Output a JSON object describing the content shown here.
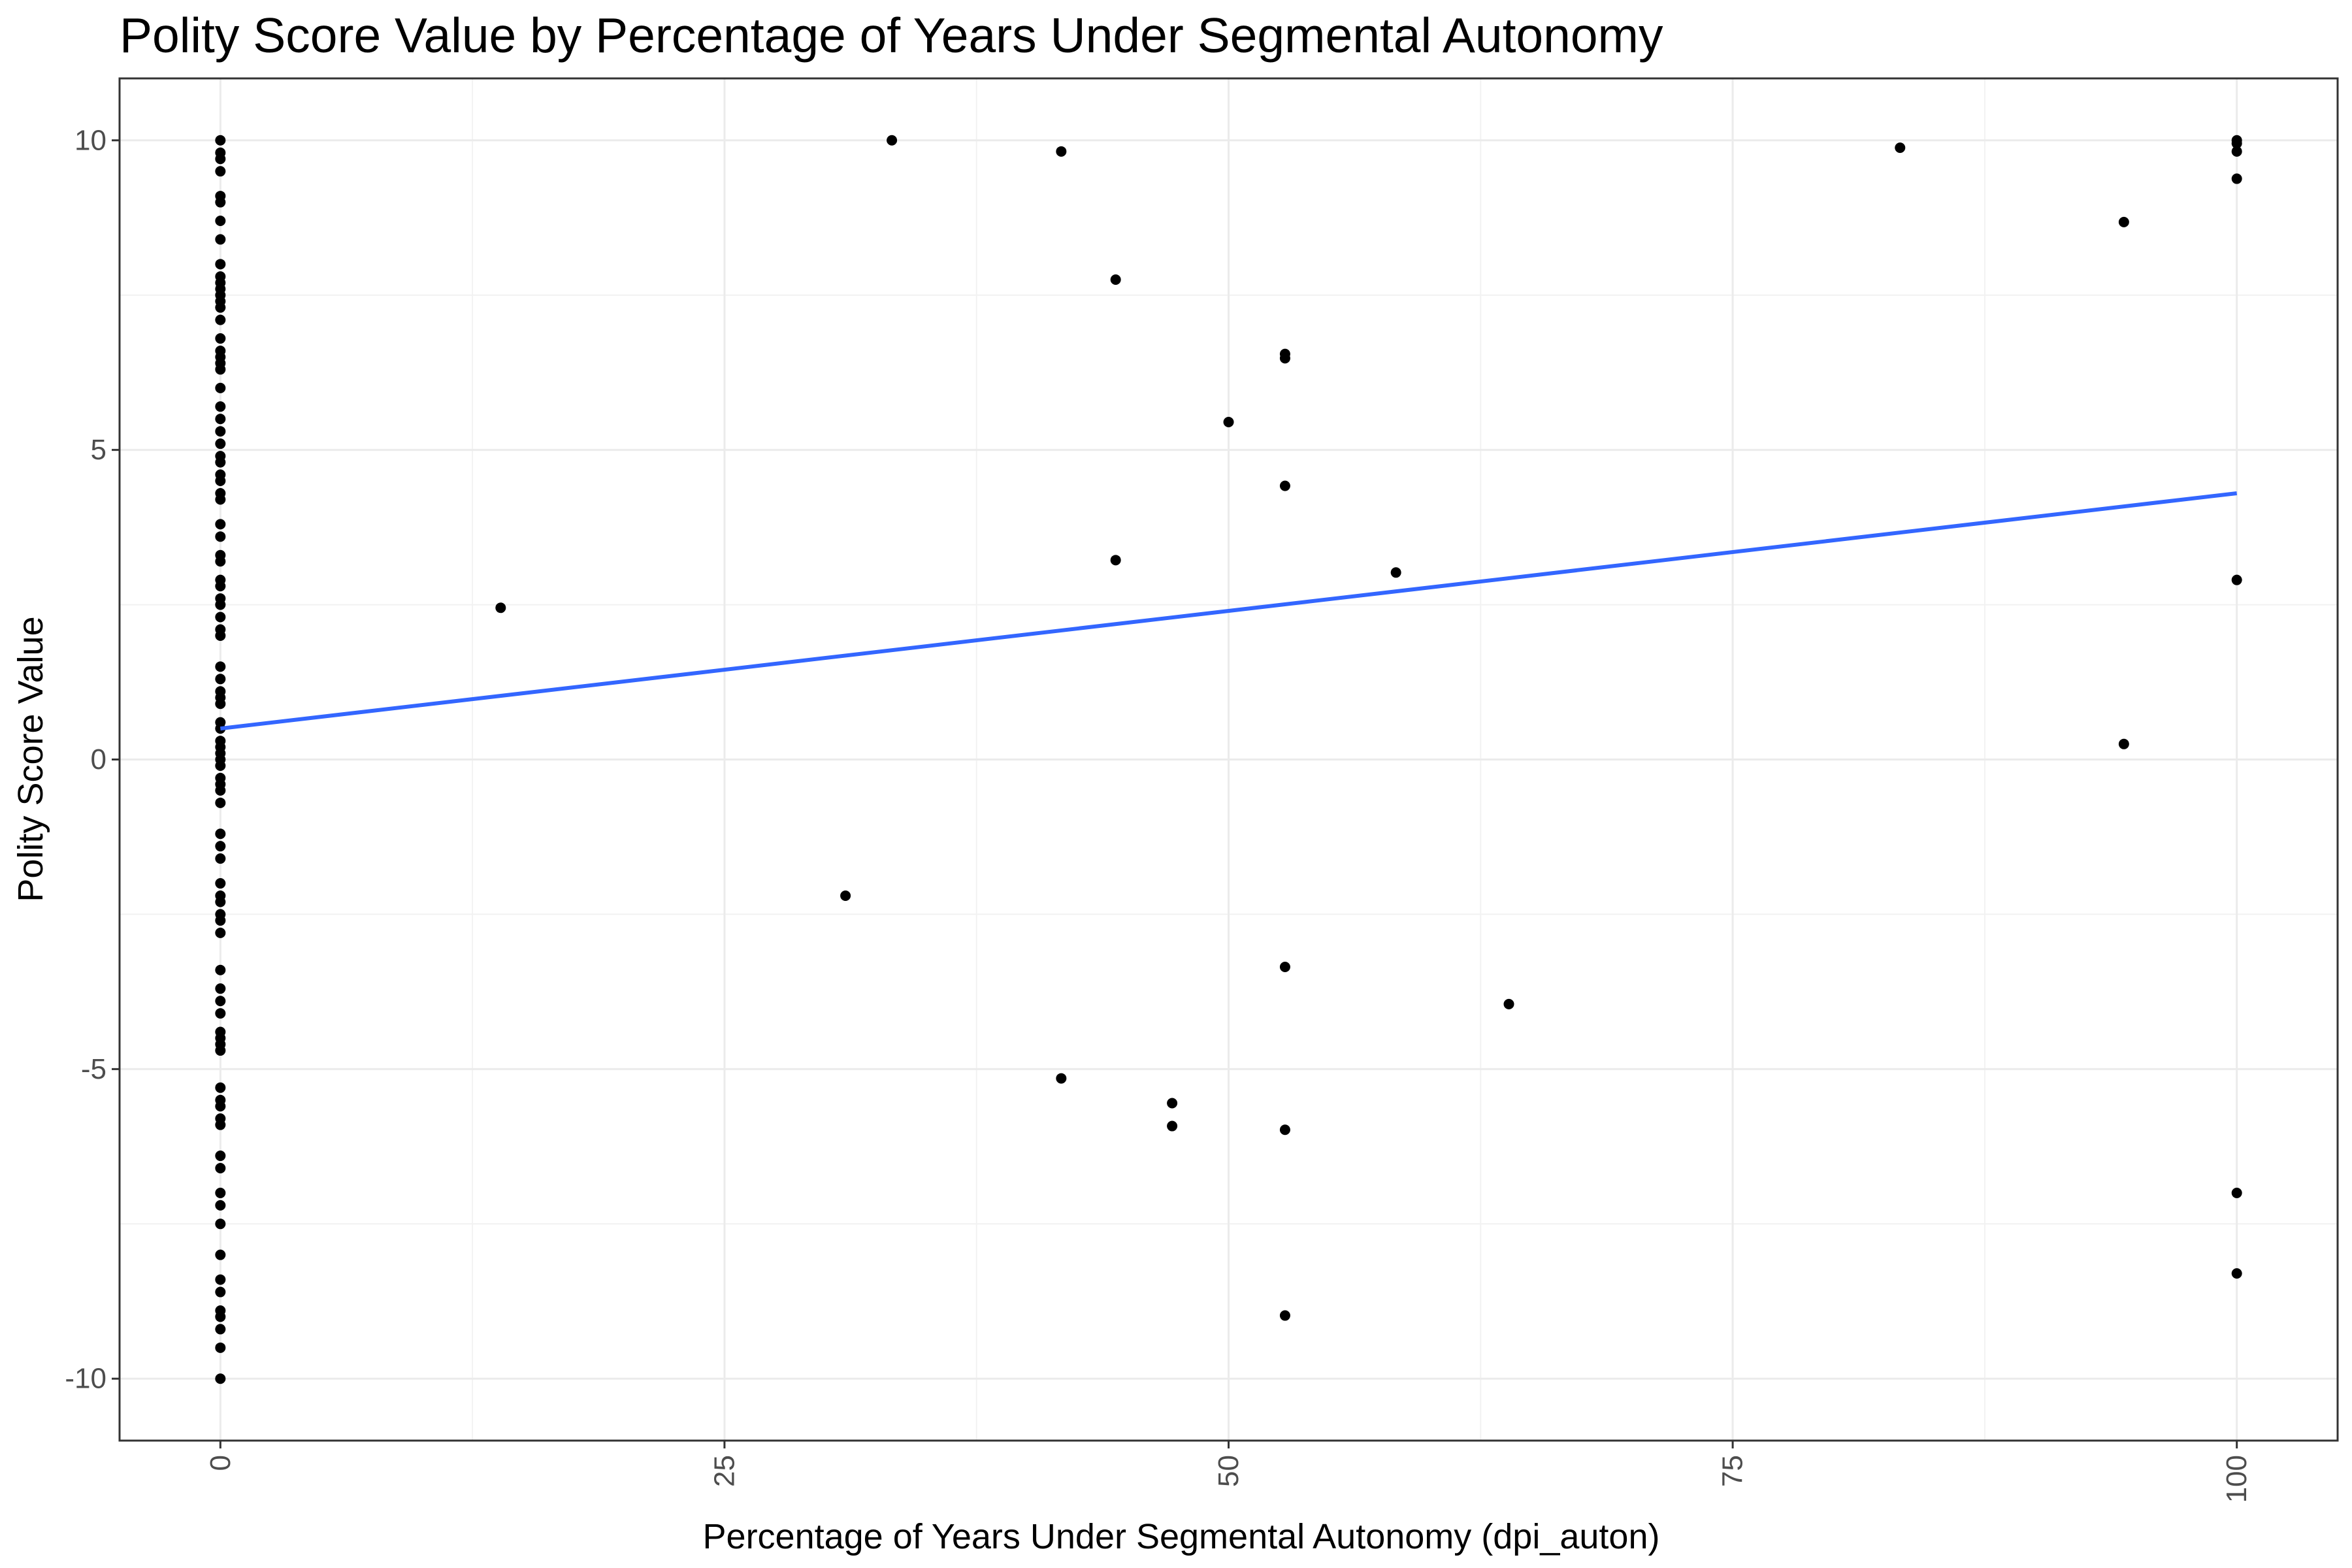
{
  "chart_data": {
    "type": "scatter",
    "title": "Polity Score Value by Percentage of Years Under Segmental Autonomy",
    "xlabel": "Percentage of Years Under Segmental Autonomy (dpi_auton)",
    "ylabel": "Polity Score Value",
    "xlim": [
      -5,
      105
    ],
    "ylim": [
      -11,
      11
    ],
    "x_ticks": [
      0,
      25,
      50,
      75,
      100
    ],
    "x_tick_labels": [
      "0",
      "25",
      "50",
      "75",
      "100"
    ],
    "y_ticks": [
      -10,
      -5,
      0,
      5,
      10
    ],
    "y_tick_labels": [
      "-10",
      "-5",
      "0",
      "5",
      "10"
    ],
    "x_tick_label_rotation": "vertical",
    "grid": true,
    "points": [
      [
        0,
        10
      ],
      [
        0,
        9.8
      ],
      [
        0,
        9.7
      ],
      [
        0,
        9.5
      ],
      [
        0,
        9.1
      ],
      [
        0,
        9.0
      ],
      [
        0,
        8.7
      ],
      [
        0,
        8.4
      ],
      [
        0,
        8.0
      ],
      [
        0,
        7.8
      ],
      [
        0,
        7.7
      ],
      [
        0,
        7.6
      ],
      [
        0,
        7.5
      ],
      [
        0,
        7.4
      ],
      [
        0,
        7.3
      ],
      [
        0,
        7.1
      ],
      [
        0,
        6.8
      ],
      [
        0,
        6.6
      ],
      [
        0,
        6.5
      ],
      [
        0,
        6.4
      ],
      [
        0,
        6.3
      ],
      [
        0,
        6.0
      ],
      [
        0,
        5.7
      ],
      [
        0,
        5.5
      ],
      [
        0,
        5.3
      ],
      [
        0,
        5.1
      ],
      [
        0,
        4.9
      ],
      [
        0,
        4.8
      ],
      [
        0,
        4.6
      ],
      [
        0,
        4.5
      ],
      [
        0,
        4.3
      ],
      [
        0,
        4.2
      ],
      [
        0,
        3.8
      ],
      [
        0,
        3.6
      ],
      [
        0,
        3.3
      ],
      [
        0,
        3.2
      ],
      [
        0,
        2.9
      ],
      [
        0,
        2.8
      ],
      [
        0,
        2.6
      ],
      [
        0,
        2.5
      ],
      [
        0,
        2.3
      ],
      [
        0,
        2.1
      ],
      [
        0,
        2.0
      ],
      [
        0,
        1.5
      ],
      [
        0,
        1.3
      ],
      [
        0,
        1.1
      ],
      [
        0,
        1.0
      ],
      [
        0,
        0.9
      ],
      [
        0,
        0.6
      ],
      [
        0,
        0.5
      ],
      [
        0,
        0.3
      ],
      [
        0,
        0.2
      ],
      [
        0,
        0.1
      ],
      [
        0,
        0.0
      ],
      [
        0,
        -0.1
      ],
      [
        0,
        -0.3
      ],
      [
        0,
        -0.4
      ],
      [
        0,
        -0.5
      ],
      [
        0,
        -0.7
      ],
      [
        0,
        -1.2
      ],
      [
        0,
        -1.4
      ],
      [
        0,
        -1.6
      ],
      [
        0,
        -2.0
      ],
      [
        0,
        -2.2
      ],
      [
        0,
        -2.3
      ],
      [
        0,
        -2.5
      ],
      [
        0,
        -2.6
      ],
      [
        0,
        -2.8
      ],
      [
        0,
        -3.4
      ],
      [
        0,
        -3.7
      ],
      [
        0,
        -3.9
      ],
      [
        0,
        -4.1
      ],
      [
        0,
        -4.4
      ],
      [
        0,
        -4.5
      ],
      [
        0,
        -4.6
      ],
      [
        0,
        -4.7
      ],
      [
        0,
        -5.3
      ],
      [
        0,
        -5.5
      ],
      [
        0,
        -5.6
      ],
      [
        0,
        -5.8
      ],
      [
        0,
        -5.9
      ],
      [
        0,
        -6.4
      ],
      [
        0,
        -6.6
      ],
      [
        0,
        -7.0
      ],
      [
        0,
        -7.2
      ],
      [
        0,
        -7.5
      ],
      [
        0,
        -8.0
      ],
      [
        0,
        -8.4
      ],
      [
        0,
        -8.6
      ],
      [
        0,
        -8.9
      ],
      [
        0,
        -9.0
      ],
      [
        0,
        -9.2
      ],
      [
        0,
        -9.5
      ],
      [
        0,
        -10.0
      ],
      [
        13.9,
        2.45
      ],
      [
        31.0,
        -2.2
      ],
      [
        33.3,
        10.0
      ],
      [
        41.7,
        9.82
      ],
      [
        41.7,
        -5.15
      ],
      [
        44.4,
        7.75
      ],
      [
        44.4,
        3.22
      ],
      [
        47.2,
        -5.55
      ],
      [
        47.2,
        -5.92
      ],
      [
        50.0,
        5.45
      ],
      [
        52.8,
        6.55
      ],
      [
        52.8,
        6.48
      ],
      [
        52.8,
        4.42
      ],
      [
        52.8,
        -3.35
      ],
      [
        52.8,
        -5.98
      ],
      [
        52.8,
        -8.98
      ],
      [
        58.3,
        3.02
      ],
      [
        63.9,
        -3.95
      ],
      [
        83.3,
        9.88
      ],
      [
        94.4,
        8.68
      ],
      [
        94.4,
        0.25
      ],
      [
        100,
        10.0
      ],
      [
        100,
        9.95
      ],
      [
        100,
        9.82
      ],
      [
        100,
        9.38
      ],
      [
        100,
        2.9
      ],
      [
        100,
        -7.0
      ],
      [
        100,
        -8.3
      ]
    ],
    "fit_line": {
      "x": [
        0,
        100
      ],
      "y": [
        0.5,
        4.3
      ],
      "color": "#3366ff"
    },
    "point_color": "#000000"
  }
}
